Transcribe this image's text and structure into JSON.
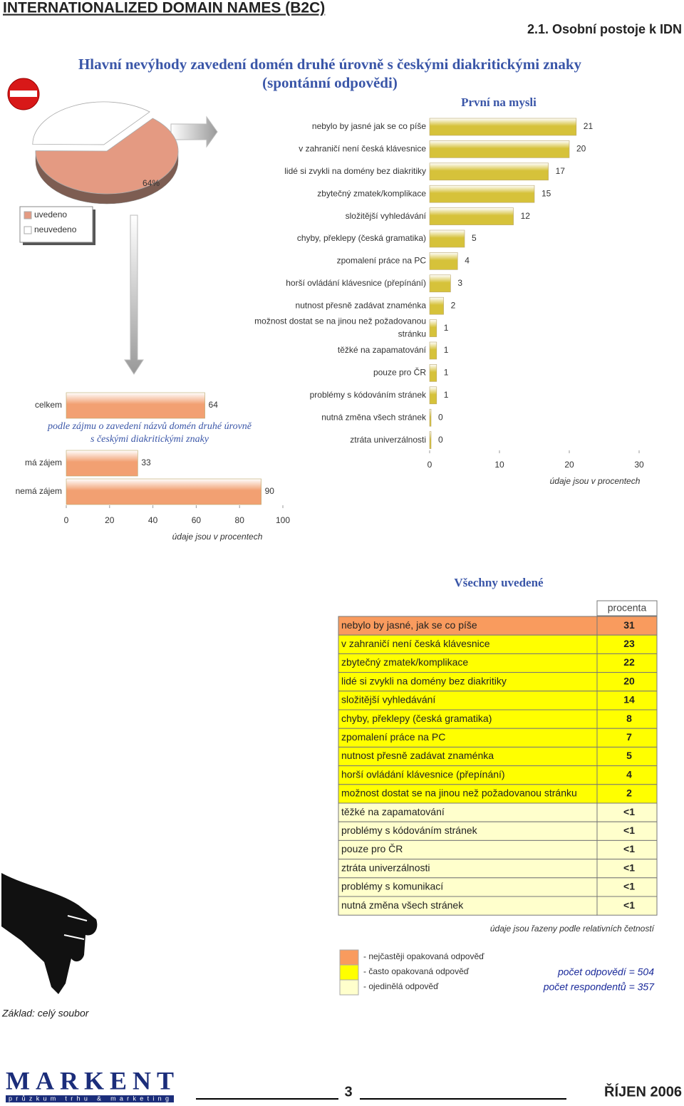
{
  "header": {
    "title": "INTERNATIONALIZED DOMAIN NAMES (B2C)",
    "section": "2.1. Osobní postoje k IDN"
  },
  "main_title": [
    "Hlavní nevýhody zavedení domén druhé úrovně s českými diakritickými znaky",
    "(spontánní odpovědi)"
  ],
  "chart_data": [
    {
      "type": "pie",
      "categories": [
        "uvedeno",
        "neuvedeno"
      ],
      "values": [
        64,
        36
      ],
      "value_labels": [
        "64%",
        null
      ],
      "colors": [
        "#e49a82",
        "#ffffff"
      ]
    },
    {
      "type": "bar",
      "orientation": "horizontal",
      "title": "První na mysli",
      "categories": [
        "nebylo by jasné jak se co píše",
        "v zahraničí není česká klávesnice",
        "lidé si zvykli na domény bez diakritiky",
        "zbytečný zmatek/komplikace",
        "složitější vyhledávání",
        "chyby, překlepy (česká gramatika)",
        "zpomalení práce na PC",
        "horší ovládání klávesnice (přepínání)",
        "nutnost přesně zadávat znaménka",
        "možnost dostat se na jinou než požadovanou stránku",
        "těžké na zapamatování",
        "pouze pro ČR",
        "problémy s kódováním stránek",
        "nutná změna všech stránek",
        "ztráta univerzálnosti"
      ],
      "values": [
        21,
        20,
        17,
        15,
        12,
        5,
        4,
        3,
        2,
        1,
        1,
        1,
        1,
        0,
        0
      ],
      "color": "#d6c23a",
      "xlim": [
        0,
        30
      ],
      "xticks": [
        0,
        10,
        20,
        30
      ],
      "xlabel": "údaje jsou v procentech"
    },
    {
      "type": "bar",
      "orientation": "horizontal",
      "categories": [
        "celkem",
        "má zájem",
        "nemá zájem"
      ],
      "values": [
        64,
        33,
        90
      ],
      "annotation": "podle zájmu o zavedení názvů domén druhé úrovně s českými diakritickými znaky",
      "color": "#f2a072",
      "xlim": [
        0,
        100
      ],
      "xticks": [
        0,
        20,
        40,
        60,
        80,
        100
      ],
      "xlabel": "údaje jsou v procentech"
    }
  ],
  "table": {
    "title": "Všechny uvedené",
    "header": "procenta",
    "rows": [
      [
        "nebylo by jasné, jak se co píše",
        "31"
      ],
      [
        "v zahraničí není česká klávesnice",
        "23"
      ],
      [
        "zbytečný zmatek/komplikace",
        "22"
      ],
      [
        "lidé si zvykli na domény bez diakritiky",
        "20"
      ],
      [
        "složitější vyhledávání",
        "14"
      ],
      [
        "chyby, překlepy (česká gramatika)",
        "8"
      ],
      [
        "zpomalení práce na PC",
        "7"
      ],
      [
        "nutnost přesně zadávat znaménka",
        "5"
      ],
      [
        "horší ovládání klávesnice (přepínání)",
        "4"
      ],
      [
        "možnost dostat se na jinou než požadovanou stránku",
        "2"
      ],
      [
        "těžké na zapamatování",
        "<1"
      ],
      [
        "problémy s kódováním stránek",
        "<1"
      ],
      [
        "pouze pro ČR",
        "<1"
      ],
      [
        "ztráta univerzálnosti",
        "<1"
      ],
      [
        "problémy s komunikací",
        "<1"
      ],
      [
        "nutná změna všech stránek",
        "<1"
      ]
    ],
    "row_colors": [
      "#f99b5e",
      "#ffff00",
      "#ffff00",
      "#ffff00",
      "#ffff00",
      "#ffff00",
      "#ffff00",
      "#ffff00",
      "#ffff00",
      "#ffff00",
      "#ffffcc",
      "#ffffcc",
      "#ffffcc",
      "#ffffcc",
      "#ffffcc",
      "#ffffcc"
    ]
  },
  "legend": [
    {
      "label": "- nejčastěji opakovaná odpověď",
      "color": "#f99b5e"
    },
    {
      "label": "- často opakovaná odpověď",
      "color": "#ffff00"
    },
    {
      "label": "- ojedinělá odpověď",
      "color": "#ffffcc"
    }
  ],
  "notes": {
    "sorting": "údaje jsou řazeny podle relativních četností",
    "answers": "počet odpovědí = 504",
    "respondents": "počet respondentů = 357",
    "base": "Základ: celý soubor"
  },
  "footer": {
    "logo": "MARKENT",
    "logo_sub": "průzkum trhu & marketing",
    "page": "3",
    "date": "ŘÍJEN 2006"
  }
}
